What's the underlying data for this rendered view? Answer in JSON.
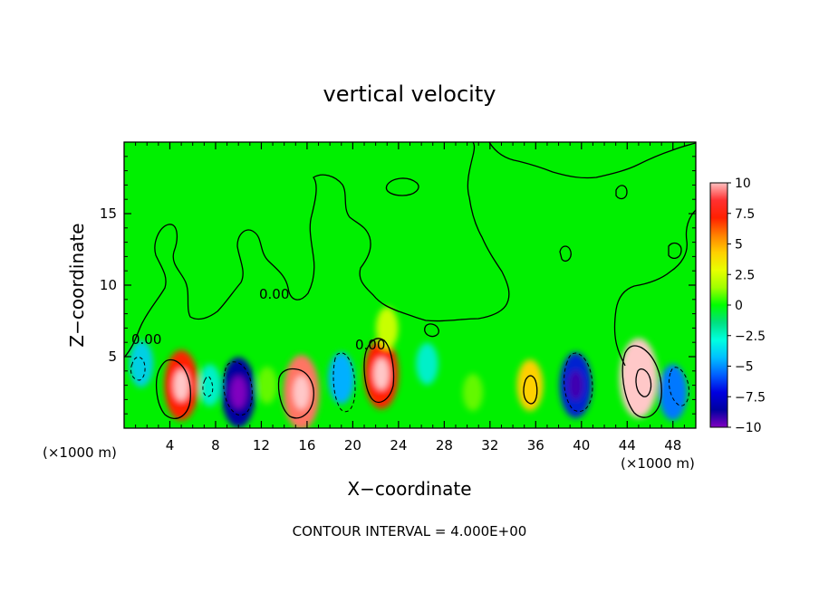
{
  "chart_data": {
    "type": "heatmap",
    "title": "vertical velocity",
    "xlabel": "X−coordinate",
    "ylabel": "Z−coordinate",
    "xlim": [
      0,
      50
    ],
    "ylim": [
      0,
      20
    ],
    "x_ticks": [
      4,
      8,
      12,
      16,
      20,
      24,
      28,
      32,
      36,
      40,
      44,
      48
    ],
    "y_ticks": [
      5,
      10,
      15
    ],
    "x_unit_label_left": "(×1000 m)",
    "x_unit_label_right": "(×1000 m)",
    "contour_interval_note": "CONTOUR INTERVAL = 4.000E+00",
    "contour_value_label": "0.00",
    "grid": false,
    "legend_position": "right",
    "colorbar": {
      "range": [
        -10,
        10
      ],
      "tick_labels": [
        "10",
        "7.5",
        "5",
        "2.5",
        "0",
        "−2.5",
        "−5",
        "−7.5",
        "−10"
      ],
      "tick_values": [
        10,
        7.5,
        5,
        2.5,
        0,
        -2.5,
        -5,
        -7.5,
        -10
      ],
      "colors": [
        "#ffc0c0",
        "#ff3030",
        "#ff2000",
        "#ff8000",
        "#ffd000",
        "#e8ff00",
        "#a0ff00",
        "#00ff00",
        "#00e080",
        "#00ffe0",
        "#00c0ff",
        "#0060ff",
        "#0000e0",
        "#0000a0",
        "#8000c0"
      ]
    },
    "cells": [
      {
        "x": 1.5,
        "z": 4.5,
        "value": -3
      },
      {
        "x": 5.0,
        "z": 3.0,
        "value": 8
      },
      {
        "x": 7.5,
        "z": 3.0,
        "value": -2
      },
      {
        "x": 10.0,
        "z": 2.5,
        "value": -8
      },
      {
        "x": 12.5,
        "z": 3.0,
        "value": 1
      },
      {
        "x": 15.5,
        "z": 2.5,
        "value": 9
      },
      {
        "x": 19.0,
        "z": 3.5,
        "value": -4
      },
      {
        "x": 22.5,
        "z": 3.8,
        "value": 8
      },
      {
        "x": 23.0,
        "z": 7.0,
        "value": 2
      },
      {
        "x": 26.5,
        "z": 4.5,
        "value": -2
      },
      {
        "x": 30.5,
        "z": 2.5,
        "value": 1
      },
      {
        "x": 35.5,
        "z": 3.0,
        "value": 4
      },
      {
        "x": 39.5,
        "z": 3.0,
        "value": -7
      },
      {
        "x": 45.0,
        "z": 3.5,
        "value": 10
      },
      {
        "x": 48.0,
        "z": 2.5,
        "value": -5
      }
    ]
  }
}
